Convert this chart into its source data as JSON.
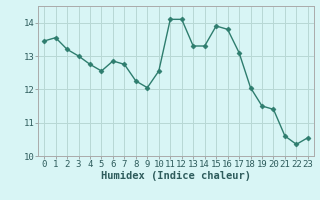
{
  "x": [
    0,
    1,
    2,
    3,
    4,
    5,
    6,
    7,
    8,
    9,
    10,
    11,
    12,
    13,
    14,
    15,
    16,
    17,
    18,
    19,
    20,
    21,
    22,
    23
  ],
  "y": [
    13.45,
    13.55,
    13.2,
    13.0,
    12.75,
    12.55,
    12.85,
    12.75,
    12.25,
    12.05,
    12.55,
    14.1,
    14.1,
    13.3,
    13.3,
    13.9,
    13.8,
    13.1,
    12.05,
    11.5,
    11.4,
    10.6,
    10.35,
    10.55
  ],
  "line_color": "#2e7d6e",
  "marker": "D",
  "marker_size": 2.5,
  "bg_color": "#d8f5f5",
  "grid_color": "#b8d8d5",
  "xlabel": "Humidex (Indice chaleur)",
  "xlim": [
    -0.5,
    23.5
  ],
  "ylim": [
    10,
    14.5
  ],
  "yticks": [
    10,
    11,
    12,
    13,
    14
  ],
  "xticks": [
    0,
    1,
    2,
    3,
    4,
    5,
    6,
    7,
    8,
    9,
    10,
    11,
    12,
    13,
    14,
    15,
    16,
    17,
    18,
    19,
    20,
    21,
    22,
    23
  ],
  "tick_label_fontsize": 6.5,
  "xlabel_fontsize": 7.5
}
